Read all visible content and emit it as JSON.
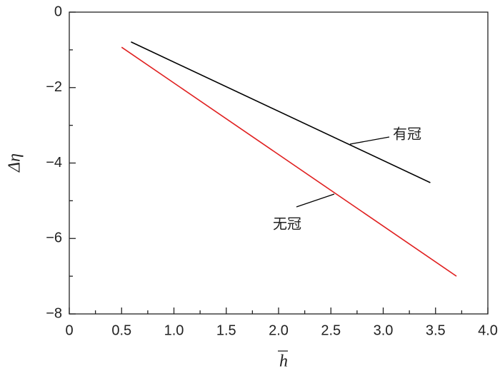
{
  "chart_data": {
    "type": "line",
    "xlabel": "h",
    "ylabel": "Δη",
    "xlim": [
      0,
      4.0
    ],
    "xticks": [
      0,
      0.5,
      {
        "value": 1,
        "label": "1.0"
      },
      1.5,
      {
        "value": 2,
        "label": "2.0"
      },
      2.5,
      {
        "value": 3,
        "label": "3.0"
      },
      3.5,
      {
        "value": 4,
        "label": "4.0"
      }
    ],
    "xminorticks": [
      0.25,
      0.75,
      1.25,
      1.75,
      2.25,
      2.75,
      3.25,
      3.75
    ],
    "ylim": [
      -8,
      0
    ],
    "yticks": [
      {
        "value": -8,
        "label": "−8"
      },
      {
        "value": -6,
        "label": "−6"
      },
      {
        "value": -4,
        "label": "−4"
      },
      {
        "value": -2,
        "label": "−2"
      },
      0
    ],
    "yminorticks": [
      -7,
      -5,
      -3,
      -1
    ],
    "series": [
      {
        "name": "有冠",
        "color": "#000000",
        "x": [
          0.59,
          3.45
        ],
        "values": [
          -0.79,
          -4.52
        ]
      },
      {
        "name": "无冠",
        "color": "#e02020",
        "x": [
          0.5,
          3.7
        ],
        "values": [
          -0.93,
          -7.0
        ]
      }
    ]
  }
}
